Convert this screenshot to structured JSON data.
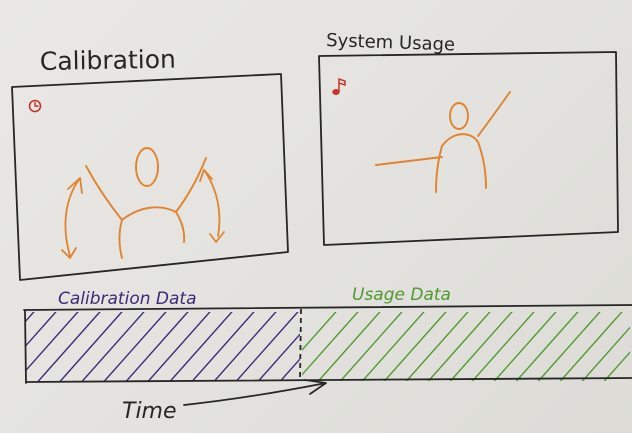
{
  "panels": {
    "calibration": {
      "title": "Calibration",
      "icon": "clock-icon"
    },
    "usage": {
      "title": "System Usage",
      "icon": "music-note-icon"
    }
  },
  "timeline": {
    "calibration_label": "Calibration Data",
    "usage_label": "Usage Data",
    "axis_label": "Time"
  },
  "colors": {
    "ink": "#262626",
    "figure": "#e2832e",
    "calibration_hatch": "#3a2a78",
    "usage_hatch": "#4f9a2e",
    "icon_red": "#c8322c",
    "background": "#e6e5e1"
  }
}
